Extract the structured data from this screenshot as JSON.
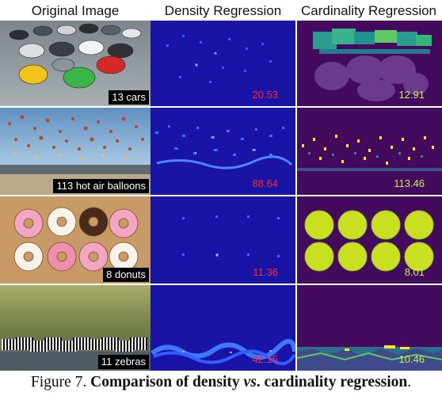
{
  "headers": [
    "Original Image",
    "Density Regression",
    "Cardinality Regression"
  ],
  "rows": [
    {
      "label": "13 cars",
      "density": "20.53",
      "cardinality": "12.91"
    },
    {
      "label": "113 hot air balloons",
      "density": "88.64",
      "cardinality": "113.46"
    },
    {
      "label": "8 donuts",
      "density": "11.36",
      "cardinality": "8.01"
    },
    {
      "label": "11 zebras",
      "density": "42.15",
      "cardinality": "10.46"
    }
  ],
  "caption": {
    "prefix": "Figure 7. ",
    "bold1": "Comparison of density ",
    "italic": "vs",
    "bold2": ". cardinality regression",
    "suffix": "."
  },
  "colors": {
    "density_bg": "#1a14a6",
    "cardinality_bg": "#440a5e",
    "density_label": "#ff2a2a",
    "cardinality_label": "#c8ee5a"
  }
}
